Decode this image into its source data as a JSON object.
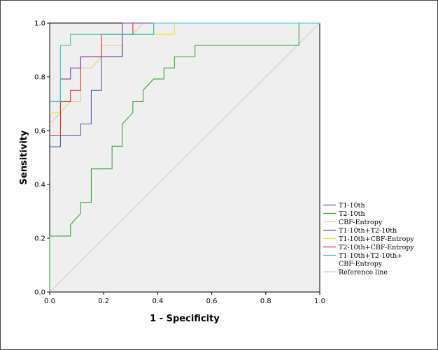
{
  "chart_data": {
    "type": "line",
    "title": "",
    "xlabel": "1 - Specificity",
    "ylabel": "Sensitivity",
    "xlim": [
      0,
      1
    ],
    "ylim": [
      0,
      1
    ],
    "xticks": [
      "0.0",
      "0.2",
      "0.4",
      "0.6",
      "0.8",
      "1.0"
    ],
    "yticks": [
      "0.0",
      "0.2",
      "0.4",
      "0.6",
      "0.8",
      "1.0"
    ],
    "grid": false,
    "legend_position": "right",
    "series": [
      {
        "name": "T1-10th",
        "color": "#4a63a8",
        "points": [
          [
            0,
            0.54
          ],
          [
            0.04,
            0.54
          ],
          [
            0.04,
            0.583
          ],
          [
            0.115,
            0.583
          ],
          [
            0.115,
            0.625
          ],
          [
            0.154,
            0.625
          ],
          [
            0.154,
            0.75
          ],
          [
            0.192,
            0.75
          ],
          [
            0.192,
            0.875
          ],
          [
            0.269,
            0.875
          ],
          [
            0.269,
            0.958
          ],
          [
            0.385,
            0.958
          ],
          [
            0.385,
            1
          ],
          [
            1,
            1
          ]
        ]
      },
      {
        "name": "T2-10th",
        "color": "#3aa538",
        "points": [
          [
            0,
            0
          ],
          [
            0,
            0.208
          ],
          [
            0.077,
            0.208
          ],
          [
            0.077,
            0.25
          ],
          [
            0.115,
            0.292
          ],
          [
            0.115,
            0.333
          ],
          [
            0.154,
            0.333
          ],
          [
            0.154,
            0.458
          ],
          [
            0.231,
            0.458
          ],
          [
            0.231,
            0.542
          ],
          [
            0.269,
            0.542
          ],
          [
            0.269,
            0.625
          ],
          [
            0.308,
            0.667
          ],
          [
            0.308,
            0.708
          ],
          [
            0.346,
            0.708
          ],
          [
            0.346,
            0.75
          ],
          [
            0.385,
            0.792
          ],
          [
            0.423,
            0.792
          ],
          [
            0.423,
            0.833
          ],
          [
            0.462,
            0.833
          ],
          [
            0.462,
            0.875
          ],
          [
            0.538,
            0.875
          ],
          [
            0.538,
            0.917
          ],
          [
            0.923,
            0.917
          ],
          [
            0.923,
            1
          ],
          [
            1,
            1
          ]
        ]
      },
      {
        "name": "CBF-Entropy",
        "color": "#d9d38a",
        "points": [
          [
            0,
            0.625
          ],
          [
            0.04,
            0.667
          ],
          [
            0.077,
            0.708
          ],
          [
            0.115,
            0.708
          ],
          [
            0.115,
            0.833
          ],
          [
            0.154,
            0.833
          ],
          [
            0.192,
            0.875
          ],
          [
            0.192,
            0.917
          ],
          [
            0.269,
            0.917
          ],
          [
            0.269,
            0.958
          ],
          [
            0.308,
            0.958
          ],
          [
            0.346,
            1
          ],
          [
            1,
            1
          ]
        ]
      },
      {
        "name": "T1-10th+T2-10th",
        "color": "#7a3fa6",
        "points": [
          [
            0,
            0.708
          ],
          [
            0.04,
            0.708
          ],
          [
            0.04,
            0.792
          ],
          [
            0.077,
            0.792
          ],
          [
            0.077,
            0.833
          ],
          [
            0.115,
            0.833
          ],
          [
            0.115,
            0.875
          ],
          [
            0.269,
            0.875
          ],
          [
            0.269,
            1
          ],
          [
            1,
            1
          ]
        ]
      },
      {
        "name": "T1-10th+CBF-Entropy",
        "color": "#f2e03a",
        "points": [
          [
            0,
            0.667
          ],
          [
            0.04,
            0.667
          ],
          [
            0.04,
            0.917
          ],
          [
            0.077,
            0.917
          ],
          [
            0.077,
            0.958
          ],
          [
            0.462,
            0.958
          ],
          [
            0.462,
            1
          ],
          [
            1,
            1
          ]
        ]
      },
      {
        "name": "T2-10th+CBF-Entropy",
        "color": "#e0302a",
        "points": [
          [
            0,
            0.583
          ],
          [
            0.04,
            0.583
          ],
          [
            0.04,
            0.708
          ],
          [
            0.077,
            0.708
          ],
          [
            0.077,
            0.75
          ],
          [
            0.115,
            0.75
          ],
          [
            0.115,
            0.875
          ],
          [
            0.192,
            0.875
          ],
          [
            0.192,
            0.958
          ],
          [
            0.308,
            0.958
          ],
          [
            0.308,
            1
          ],
          [
            1,
            1
          ]
        ]
      },
      {
        "name": "T1-10th+T2-10th+CBF-Entropy",
        "color": "#3fc7c7",
        "points": [
          [
            0,
            0.708
          ],
          [
            0.04,
            0.708
          ],
          [
            0.04,
            0.917
          ],
          [
            0.077,
            0.917
          ],
          [
            0.077,
            0.958
          ],
          [
            0.385,
            0.958
          ],
          [
            0.385,
            1
          ],
          [
            1,
            1
          ]
        ]
      },
      {
        "name": "Reference line",
        "color": "#cfcfcf",
        "points": [
          [
            0,
            0
          ],
          [
            1,
            1
          ]
        ]
      }
    ]
  }
}
